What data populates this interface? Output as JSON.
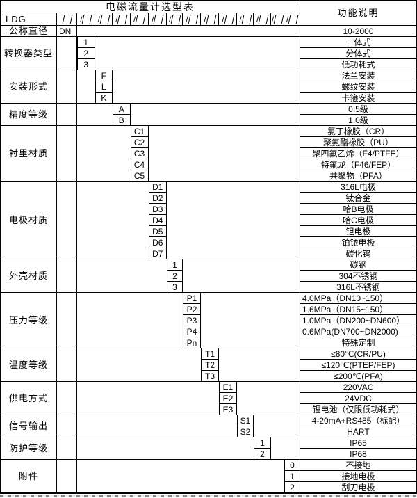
{
  "title": "电磁流量计选型表",
  "function_header": "功能说明",
  "code_row": {
    "prefix": "LDG",
    "slash": "/",
    "box_count": 13
  },
  "diameter": {
    "label": "公称直径",
    "code": "DN",
    "desc": "10-2000"
  },
  "sections": [
    {
      "label": "转换器类型",
      "slot": 1,
      "options": [
        {
          "code": "1",
          "desc": "一体式"
        },
        {
          "code": "2",
          "desc": "分体式"
        },
        {
          "code": "3",
          "desc": "低功耗式"
        }
      ]
    },
    {
      "label": "安装形式",
      "slot": 2,
      "options": [
        {
          "code": "F",
          "desc": "法兰安装"
        },
        {
          "code": "L",
          "desc": "螺纹安装"
        },
        {
          "code": "K",
          "desc": "卡箍安装"
        }
      ]
    },
    {
      "label": "精度等级",
      "slot": 3,
      "options": [
        {
          "code": "A",
          "desc": "0.5级"
        },
        {
          "code": "B",
          "desc": "1.0级"
        }
      ]
    },
    {
      "label": "衬里材质",
      "slot": 4,
      "options": [
        {
          "code": "C1",
          "desc": "氯丁橡胶（CR）"
        },
        {
          "code": "C2",
          "desc": "聚氨酯橡胶（PU）"
        },
        {
          "code": "C3",
          "desc": "聚四氟乙烯（F4/PTFE）"
        },
        {
          "code": "C4",
          "desc": "特氟龙（F46/FEP）"
        },
        {
          "code": "C5",
          "desc": "共聚物（PFA）"
        }
      ]
    },
    {
      "label": "电极材质",
      "slot": 5,
      "options": [
        {
          "code": "D1",
          "desc": "316L电极"
        },
        {
          "code": "D2",
          "desc": "钛合金"
        },
        {
          "code": "D3",
          "desc": "哈B电极"
        },
        {
          "code": "D4",
          "desc": "哈C电极"
        },
        {
          "code": "D5",
          "desc": "钽电极"
        },
        {
          "code": "D6",
          "desc": "铂铱电极"
        },
        {
          "code": "D7",
          "desc": "碳化钨"
        }
      ]
    },
    {
      "label": "外壳材质",
      "slot": 6,
      "options": [
        {
          "code": "1",
          "desc": "碳钢"
        },
        {
          "code": "2",
          "desc": "304不锈钢"
        },
        {
          "code": "3",
          "desc": "316L不锈钢"
        }
      ]
    },
    {
      "label": "压力等级",
      "slot": 7,
      "options": [
        {
          "code": "P1",
          "desc": "4.0MPa（DN10~150）"
        },
        {
          "code": "P2",
          "desc": "1.6MPa（DN15~150）"
        },
        {
          "code": "P3",
          "desc": "1.0MPa（DN200~DN600）"
        },
        {
          "code": "P4",
          "desc": "0.6MPa(DN700~DN2000)"
        },
        {
          "code": "Pn",
          "desc": "特殊定制"
        }
      ]
    },
    {
      "label": "温度等级",
      "slot": 8,
      "options": [
        {
          "code": "T1",
          "desc": "≤80℃(CR/PU)"
        },
        {
          "code": "T2",
          "desc": "≤120℃(PTEP/FEP)"
        },
        {
          "code": "T3",
          "desc": "≤200℃(PFA)"
        }
      ]
    },
    {
      "label": "供电方式",
      "slot": 9,
      "options": [
        {
          "code": "E1",
          "desc": "220VAC"
        },
        {
          "code": "E2",
          "desc": "24VDC"
        },
        {
          "code": "E3",
          "desc": "锂电池（仅限低功耗式）"
        }
      ]
    },
    {
      "label": "信号输出",
      "slot": 10,
      "options": [
        {
          "code": "S1",
          "desc": "4-20mA+RS485（标配）"
        },
        {
          "code": "S2",
          "desc": "HART"
        }
      ]
    },
    {
      "label": "防护等级",
      "slot": 11,
      "options": [
        {
          "code": "1",
          "desc": "IP65"
        },
        {
          "code": "2",
          "desc": "IP68"
        }
      ]
    },
    {
      "label": "附件",
      "slot": 13,
      "options": [
        {
          "code": "0",
          "desc": "不接地"
        },
        {
          "code": "1",
          "desc": "接地电极"
        },
        {
          "code": "2",
          "desc": "刮刀电极"
        }
      ]
    }
  ],
  "colors": {
    "border": "#000000",
    "background": "#ffffff",
    "text": "#000000"
  }
}
